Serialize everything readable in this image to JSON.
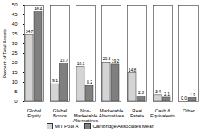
{
  "chart_data": {
    "type": "bar",
    "y_label": "Percent of Total Assets",
    "categories": [
      "Global Equity",
      "Global Bonds",
      "Non-Marketable Alternatives",
      "Marketable Alternatives",
      "Real Estate",
      "Cash & Equivalents",
      "Other"
    ],
    "series": [
      {
        "name": "MIT Pool A",
        "color": "#d4d4d4",
        "values": [
          34.7,
          9.1,
          18.1,
          20.3,
          14.8,
          3.4,
          0.0
        ],
        "value_labels": [
          "34.7",
          "9.1",
          "18.1",
          "20.3",
          "14.8",
          "3.4",
          "0.0"
        ]
      },
      {
        "name": "Cambridge Associates Mean",
        "color": "#7f7f7f",
        "values": [
          46.4,
          19.7,
          8.2,
          19.2,
          2.8,
          2.1,
          1.9
        ],
        "value_labels": [
          "46.4",
          "19.7",
          "8.2",
          "19.2",
          "2.8",
          "2.1",
          "1.9"
        ]
      }
    ],
    "ylim": [
      0,
      50
    ],
    "yticks": [
      0,
      5,
      10,
      15,
      20,
      25,
      30,
      35,
      40,
      45,
      50
    ],
    "grid": false,
    "legend": "bottom",
    "data_labels": true
  }
}
